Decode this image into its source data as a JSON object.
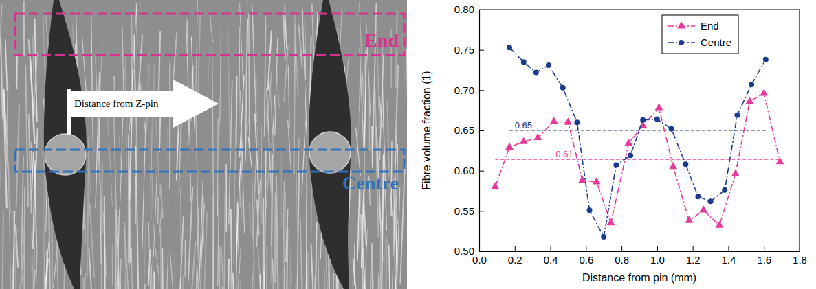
{
  "micrograph": {
    "regions": [
      {
        "label": "End",
        "color": "#d9318f"
      },
      {
        "label": "Centre",
        "color": "#2e73bf"
      }
    ],
    "arrow_label": "Distance from Z-pin"
  },
  "chart_data": {
    "type": "line",
    "x_label": "Distance from pin (mm)",
    "y_label": "Fibre volume fraction (1)",
    "xlim": [
      0.0,
      1.8
    ],
    "xticks": [
      {
        "value": 0.0,
        "label": "0.0"
      },
      0.2,
      0.4,
      0.6,
      0.8,
      {
        "value": 1.0,
        "label": "1.0"
      },
      1.2,
      1.4,
      1.6,
      1.8
    ],
    "ylim": [
      0.5,
      0.8
    ],
    "yticks": [
      {
        "value": 0.5,
        "label": "0.50"
      },
      0.55,
      {
        "value": 0.6,
        "label": "0.60"
      },
      0.65,
      {
        "value": 0.7,
        "label": "0.70"
      },
      0.75,
      {
        "value": 0.8,
        "label": "0.80"
      }
    ],
    "legend": "upper right",
    "series": [
      {
        "name": "End",
        "color": "#e6399b",
        "marker": "triangle",
        "line_style": "dash-dot",
        "x": [
          0.09,
          0.17,
          0.25,
          0.33,
          0.42,
          0.5,
          0.58,
          0.66,
          0.74,
          0.84,
          0.92,
          1.01,
          1.09,
          1.18,
          1.26,
          1.35,
          1.44,
          1.52,
          1.6,
          1.69
        ],
        "values": [
          0.58,
          0.629,
          0.636,
          0.641,
          0.661,
          0.66,
          0.588,
          0.586,
          0.535,
          0.634,
          0.656,
          0.678,
          0.605,
          0.538,
          0.551,
          0.532,
          0.596,
          0.686,
          0.696,
          0.611
        ]
      },
      {
        "name": "Centre",
        "color": "#1a3a8f",
        "marker": "circle",
        "line_style": "dash-dot",
        "x": [
          0.17,
          0.25,
          0.32,
          0.39,
          0.47,
          0.55,
          0.62,
          0.7,
          0.77,
          0.85,
          0.92,
          1.0,
          1.08,
          1.16,
          1.23,
          1.3,
          1.38,
          1.45,
          1.53,
          1.61
        ],
        "values": [
          0.753,
          0.735,
          0.722,
          0.731,
          0.703,
          0.66,
          0.551,
          0.518,
          0.607,
          0.619,
          0.663,
          0.664,
          0.652,
          0.608,
          0.568,
          0.562,
          0.576,
          0.669,
          0.707,
          0.738
        ]
      }
    ],
    "reference_lines": [
      {
        "value": 0.65,
        "label": "0.65",
        "color": "#1a3a8f",
        "x": [
          0.17,
          1.61
        ]
      },
      {
        "value": 0.614,
        "label": "0.61",
        "color": "#e6399b",
        "x": [
          0.09,
          1.69
        ]
      }
    ]
  }
}
